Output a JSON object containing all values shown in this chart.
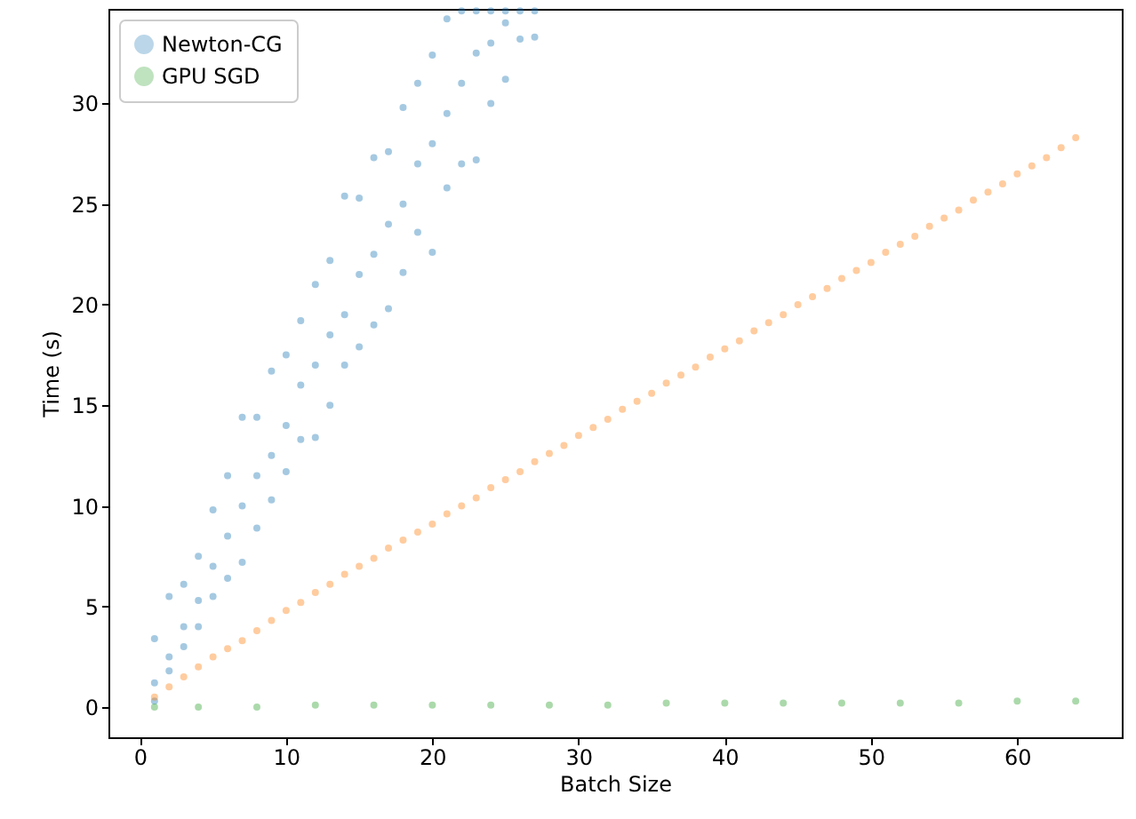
{
  "chart_data": {
    "type": "scatter",
    "xlabel": "Batch Size",
    "ylabel": "Time (s)",
    "xlim": [
      -2.15,
      67.15
    ],
    "ylim": [
      -1.5,
      34.7
    ],
    "xticks": [
      0,
      10,
      20,
      30,
      40,
      50,
      60
    ],
    "yticks": [
      0,
      5,
      10,
      15,
      20,
      25,
      30
    ],
    "grid": false,
    "legend": "top left",
    "marker": "circle",
    "series": [
      {
        "name": "Newton-CG",
        "color": "#1f77b4",
        "x": [
          1,
          1,
          1,
          2,
          2,
          2,
          3,
          3,
          3,
          4,
          4,
          4,
          5,
          5,
          5,
          6,
          6,
          6,
          7,
          7,
          7,
          8,
          8,
          8,
          9,
          9,
          9,
          10,
          10,
          10,
          11,
          11,
          11,
          12,
          12,
          12,
          13,
          13,
          13,
          14,
          14,
          14,
          15,
          15,
          15,
          16,
          16,
          16,
          17,
          17,
          17,
          18,
          18,
          18,
          19,
          19,
          19,
          20,
          20,
          20,
          21,
          21,
          21,
          22,
          22,
          22,
          23,
          23,
          23,
          24,
          24,
          24,
          25,
          25,
          25,
          26,
          26,
          27,
          27
        ],
        "values": [
          0.3,
          1.2,
          3.4,
          1.8,
          2.5,
          5.5,
          3.0,
          4.0,
          6.1,
          4.0,
          5.3,
          7.5,
          5.5,
          7.0,
          9.8,
          6.4,
          8.5,
          11.5,
          7.2,
          10.0,
          14.4,
          8.9,
          11.5,
          14.4,
          10.3,
          12.5,
          16.7,
          11.7,
          14.0,
          17.5,
          13.3,
          16.0,
          19.2,
          13.4,
          17.0,
          21.0,
          15.0,
          18.5,
          22.2,
          17.0,
          19.5,
          25.4,
          17.9,
          21.5,
          25.3,
          19.0,
          22.5,
          27.3,
          19.8,
          24.0,
          27.6,
          21.6,
          25.0,
          29.8,
          23.6,
          27.0,
          31.0,
          22.6,
          28.0,
          32.4,
          25.8,
          29.5,
          34.2,
          27.0,
          31.0,
          34.6,
          27.2,
          32.5,
          34.6,
          30.0,
          33.0,
          34.6,
          31.2,
          34.0,
          34.6,
          33.2,
          34.6,
          33.3,
          34.6
        ]
      },
      {
        "color": "#ff7f0e",
        "x": [
          1,
          2,
          3,
          4,
          5,
          6,
          7,
          8,
          9,
          10,
          11,
          12,
          13,
          14,
          15,
          16,
          17,
          18,
          19,
          20,
          21,
          22,
          23,
          24,
          25,
          26,
          27,
          28,
          29,
          30,
          31,
          32,
          33,
          34,
          35,
          36,
          37,
          38,
          39,
          40,
          41,
          42,
          43,
          44,
          45,
          46,
          47,
          48,
          49,
          50,
          51,
          52,
          53,
          54,
          55,
          56,
          57,
          58,
          59,
          60,
          61,
          62,
          63,
          64
        ],
        "values": [
          0.5,
          1.0,
          1.5,
          2.0,
          2.5,
          2.9,
          3.3,
          3.8,
          4.3,
          4.8,
          5.2,
          5.7,
          6.1,
          6.6,
          7.0,
          7.4,
          7.9,
          8.3,
          8.7,
          9.1,
          9.6,
          10.0,
          10.4,
          10.9,
          11.3,
          11.7,
          12.2,
          12.6,
          13.0,
          13.5,
          13.9,
          14.3,
          14.8,
          15.2,
          15.6,
          16.1,
          16.5,
          16.9,
          17.4,
          17.8,
          18.2,
          18.7,
          19.1,
          19.5,
          20.0,
          20.4,
          20.8,
          21.3,
          21.7,
          22.1,
          22.6,
          23.0,
          23.4,
          23.9,
          24.3,
          24.7,
          25.2,
          25.6,
          26.0,
          26.5,
          26.9,
          27.3,
          27.8,
          28.3
        ]
      },
      {
        "name": "GPU SGD",
        "color": "#2ca02c",
        "x": [
          1,
          4,
          8,
          12,
          16,
          20,
          24,
          28,
          32,
          36,
          40,
          44,
          48,
          52,
          56,
          60,
          64
        ],
        "values": [
          0.0,
          0.0,
          0.0,
          0.1,
          0.1,
          0.1,
          0.1,
          0.1,
          0.1,
          0.2,
          0.2,
          0.2,
          0.2,
          0.2,
          0.2,
          0.3,
          0.3
        ]
      }
    ]
  }
}
